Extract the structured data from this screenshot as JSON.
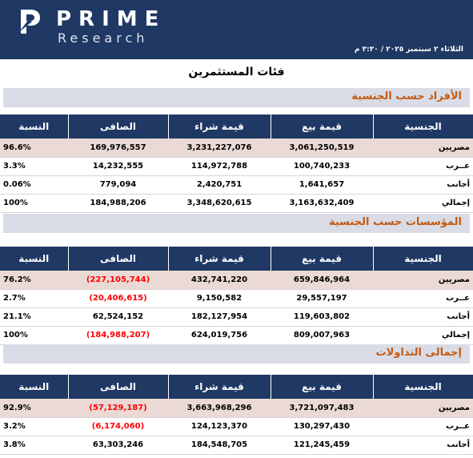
{
  "header": {
    "brand": "PRIME",
    "sub_brand": "Research",
    "datetime": "الثلاثاء ٢ سبتمبر ٢٠٢٥ / ٣:٣٠ م",
    "bg_color": "#1f3864"
  },
  "page_title": "فئات المستثمرين",
  "columns": {
    "nationality": "الجنسية",
    "sell": "قيمة بيع",
    "buy": "قيمة شراء",
    "net": "الصافى",
    "ratio": "النسبة"
  },
  "sections": [
    {
      "title": "الأفراد حسب الجنسية",
      "rows": [
        {
          "nationality": "مصريين",
          "sell": "3,061,250,519",
          "buy": "3,231,227,076",
          "net": "169,976,557",
          "ratio": "96.6%",
          "negative": false
        },
        {
          "nationality": "عــرب",
          "sell": "100,740,233",
          "buy": "114,972,788",
          "net": "14,232,555",
          "ratio": "3.3%",
          "negative": false
        },
        {
          "nationality": "أجانب",
          "sell": "1,641,657",
          "buy": "2,420,751",
          "net": "779,094",
          "ratio": "0.06%",
          "negative": false
        },
        {
          "nationality": "إجمالي",
          "sell": "3,163,632,409",
          "buy": "3,348,620,615",
          "net": "184,988,206",
          "ratio": "100%",
          "negative": false
        }
      ]
    },
    {
      "title": "المؤسسات حسب الجنسية",
      "rows": [
        {
          "nationality": "مصريين",
          "sell": "659,846,964",
          "buy": "432,741,220",
          "net": "(227,105,744)",
          "ratio": "76.2%",
          "negative": true
        },
        {
          "nationality": "عــرب",
          "sell": "29,557,197",
          "buy": "9,150,582",
          "net": "(20,406,615)",
          "ratio": "2.7%",
          "negative": true
        },
        {
          "nationality": "أجانب",
          "sell": "119,603,802",
          "buy": "182,127,954",
          "net": "62,524,152",
          "ratio": "21.1%",
          "negative": false
        },
        {
          "nationality": "إجمالي",
          "sell": "809,007,963",
          "buy": "624,019,756",
          "net": "(184,988,207)",
          "ratio": "100%",
          "negative": true
        }
      ]
    },
    {
      "title": "إجمالى التداولات",
      "rows": [
        {
          "nationality": "مصريين",
          "sell": "3,721,097,483",
          "buy": "3,663,968,296",
          "net": "(57,129,187)",
          "ratio": "92.9%",
          "negative": true
        },
        {
          "nationality": "عــرب",
          "sell": "130,297,430",
          "buy": "124,123,370",
          "net": "(6,174,060)",
          "ratio": "3.2%",
          "negative": true
        },
        {
          "nationality": "أجانب",
          "sell": "121,245,459",
          "buy": "184,548,705",
          "net": "63,303,246",
          "ratio": "3.8%",
          "negative": false
        }
      ]
    }
  ],
  "colors": {
    "section_title": "#c55a11",
    "negative": "#ff0000",
    "shaded_row": "#ead9d4"
  }
}
